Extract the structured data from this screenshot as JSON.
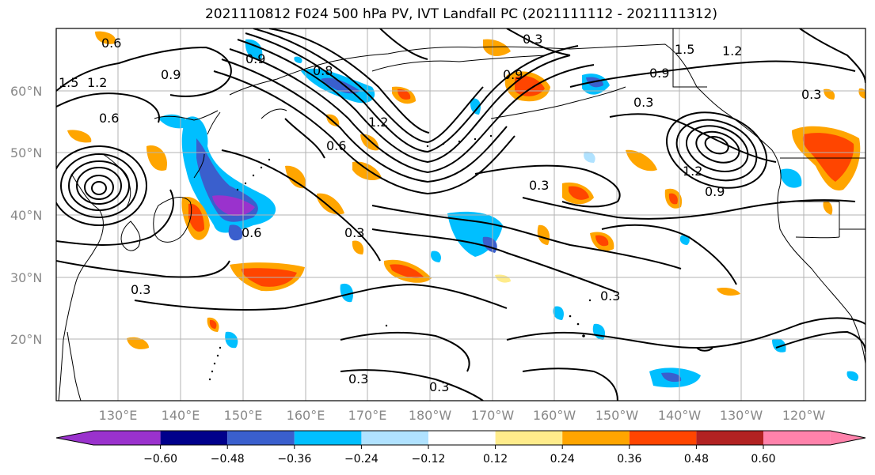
{
  "title": "2021110812 F024 500 hPa PV, IVT Landfall PC (2021111112 - 2021111312)",
  "lat_labels": [
    "60°N",
    "50°N",
    "40°N",
    "30°N",
    "20°N"
  ],
  "lon_labels": [
    "130°E",
    "140°E",
    "150°E",
    "160°E",
    "170°E",
    "180°W",
    "170°W",
    "160°W",
    "150°W",
    "140°W",
    "130°W",
    "120°W"
  ],
  "contour_labels": [
    "0.6",
    "0.9",
    "1.2",
    "1.5",
    "0.6",
    "0.9",
    "0.8",
    "1.2",
    "0.6",
    "0.3",
    "0.9",
    "1.5",
    "1.2",
    "0.3",
    "0.3",
    "0.3",
    "0.3",
    "0.3",
    "0.3",
    "0.3",
    "0.9",
    "1.2",
    "0.6",
    "0.9",
    "0.3"
  ],
  "colorbar": {
    "ticks": [
      "−0.60",
      "−0.48",
      "−0.36",
      "−0.24",
      "−0.12",
      "0.12",
      "0.24",
      "0.36",
      "0.48",
      "0.60"
    ],
    "colors": [
      "#9a32cd",
      "#00008b",
      "#3a5fcd",
      "#00bfff",
      "#b0e2ff",
      "#ffffff",
      "#ffec8b",
      "#ffa500",
      "#ff4500",
      "#b22222",
      "#ff82ab"
    ]
  }
}
